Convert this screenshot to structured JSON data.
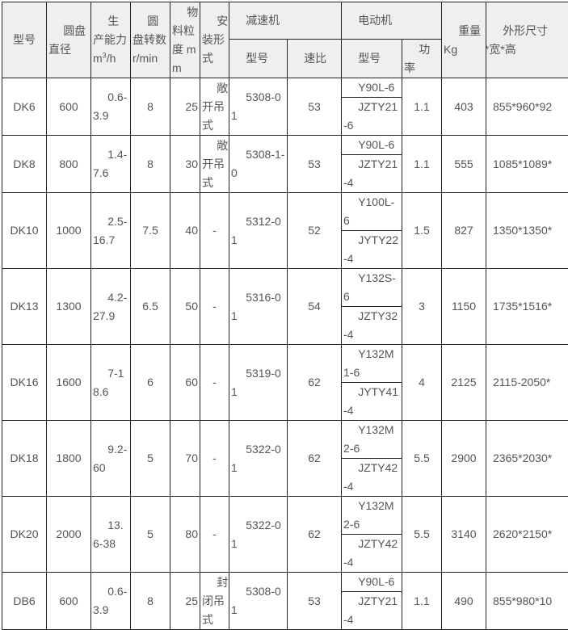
{
  "header": {
    "model": "型号",
    "disc_diameter": "圆盘直径",
    "capacity": "生产能力",
    "capacity_unit_m": "m",
    "capacity_unit_sup": "3",
    "capacity_unit_rest": "/h",
    "rotation": "圆盘转数",
    "rotation_unit": "r/min",
    "granularity": "物料粒度",
    "granularity_unit": "mm",
    "install": "安装形式",
    "reducer": "减速机",
    "reducer_model": "型号",
    "reducer_ratio": "速比",
    "motor": "电动机",
    "motor_model": "型号",
    "motor_power": "功率",
    "weight": "重量",
    "weight_unit": "Kg",
    "dimensions": "外形尺寸",
    "dimensions_sub": "长*宽*高"
  },
  "rows": [
    {
      "model": "DK6",
      "diameter": "600",
      "capacity": "0.6-3.9",
      "rpm": "8",
      "size": "25",
      "install": "敞开吊式",
      "reducer": "5308-01",
      "ratio": "53",
      "motor1": "Y90L-6",
      "motor2": "JZTY21-6",
      "power": "1.1",
      "weight": "403",
      "dims": "855*960*92"
    },
    {
      "model": "DK8",
      "diameter": "800",
      "capacity": "1.4-7.6",
      "rpm": "8",
      "size": "30",
      "install": "敞开吊式",
      "reducer": "5308-1-0",
      "ratio": "53",
      "motor1": "Y90L-6",
      "motor2": "JZTY21-4",
      "power": "1.1",
      "weight": "555",
      "dims": "1085*1089*"
    },
    {
      "model": "DK10",
      "diameter": "1000",
      "capacity": "2.5-16.7",
      "rpm": "7.5",
      "size": "40",
      "install": "-",
      "reducer": "5312-01",
      "ratio": "52",
      "motor1": "Y100L-6",
      "motor2": "JYTY22-4",
      "power": "1.5",
      "weight": "827",
      "dims": "1350*1350*"
    },
    {
      "model": "DK13",
      "diameter": "1300",
      "capacity": "4.2-27.9",
      "rpm": "6.5",
      "size": "50",
      "install": "-",
      "reducer": "5316-01",
      "ratio": "54",
      "motor1": "Y132S-6",
      "motor2": "JZTY32-4",
      "power": "3",
      "weight": "1150",
      "dims": "1735*1516*"
    },
    {
      "model": "DK16",
      "diameter": "1600",
      "capacity": "7-18.6",
      "rpm": "6",
      "size": "60",
      "install": "-",
      "reducer": "5319-01",
      "ratio": "62",
      "motor1": "Y132M1-6",
      "motor2": "JYTY41-4",
      "power": "4",
      "weight": "2125",
      "dims": "2115-2050*"
    },
    {
      "model": "DK18",
      "diameter": "1800",
      "capacity": "9.2-60",
      "rpm": "5",
      "size": "70",
      "install": "-",
      "reducer": "5322-01",
      "ratio": "62",
      "motor1": "Y132M2-6",
      "motor2": "JZTY42-4",
      "power": "5.5",
      "weight": "2900",
      "dims": "2365*2030*"
    },
    {
      "model": "DK20",
      "diameter": "2000",
      "capacity": "13.6-38",
      "rpm": "5",
      "size": "80",
      "install": "-",
      "reducer": "5322-01",
      "ratio": "62",
      "motor1": "Y132M2-6",
      "motor2": "JZTY42-4",
      "power": "5.5",
      "weight": "3140",
      "dims": "2620*2150*"
    },
    {
      "model": "DB6",
      "diameter": "600",
      "capacity": "0.6-3.9",
      "rpm": "8",
      "size": "25",
      "install": "封闭吊式",
      "reducer": "5308-01",
      "ratio": "53",
      "motor1": "Y90L-6",
      "motor2": "JZTY21-4",
      "power": "1.1",
      "weight": "490",
      "dims": "855*980*10"
    }
  ]
}
